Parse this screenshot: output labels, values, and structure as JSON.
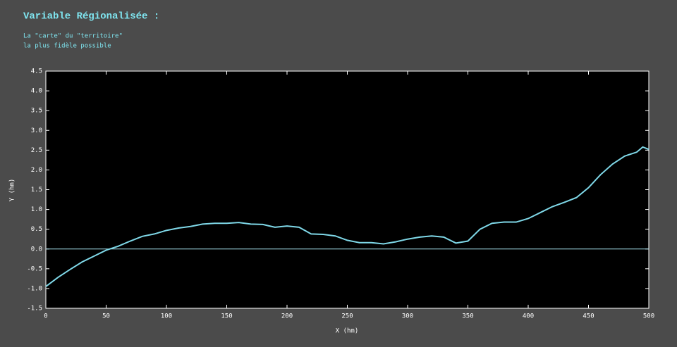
{
  "chart_data": {
    "type": "line",
    "title": "Variable Régionalisée :",
    "subtitle": [
      "La \"carte\" du \"territoire\"",
      "la plus fidèle possible"
    ],
    "x_label": "X  (hm)",
    "y_label": "Y  (hm)",
    "x": [
      0,
      10,
      20,
      30,
      40,
      50,
      60,
      70,
      80,
      90,
      100,
      110,
      120,
      130,
      140,
      150,
      160,
      170,
      180,
      190,
      200,
      210,
      220,
      230,
      240,
      250,
      260,
      270,
      280,
      290,
      300,
      310,
      320,
      330,
      340,
      350,
      360,
      370,
      380,
      390,
      400,
      410,
      420,
      430,
      440,
      450,
      460,
      470,
      480,
      490,
      495,
      500
    ],
    "series": [
      {
        "color": "#7fd8e8",
        "values": [
          -0.95,
          -0.72,
          -0.52,
          -0.33,
          -0.18,
          -0.03,
          0.07,
          0.2,
          0.32,
          0.38,
          0.47,
          0.53,
          0.57,
          0.63,
          0.65,
          0.65,
          0.67,
          0.63,
          0.62,
          0.55,
          0.58,
          0.55,
          0.38,
          0.37,
          0.33,
          0.22,
          0.16,
          0.16,
          0.13,
          0.18,
          0.25,
          0.3,
          0.33,
          0.3,
          0.15,
          0.2,
          0.5,
          0.65,
          0.68,
          0.68,
          0.77,
          0.92,
          1.07,
          1.18,
          1.3,
          1.55,
          1.88,
          2.15,
          2.35,
          2.45,
          2.58,
          2.52
        ]
      }
    ],
    "hline": 0,
    "hline_color": "#a8e4f0",
    "xlim": [
      0,
      500
    ],
    "ylim": [
      -1.5,
      4.5
    ],
    "xticks": [
      0,
      50,
      100,
      150,
      200,
      250,
      300,
      350,
      400,
      450,
      500
    ],
    "yticks": [
      -1.5,
      {
        "value": -1,
        "label": "-1.0"
      },
      -0.5,
      {
        "value": 0,
        "label": "0.0"
      },
      0.5,
      {
        "value": 1,
        "label": "1.0"
      },
      1.5,
      {
        "value": 2,
        "label": "2.0"
      },
      2.5,
      {
        "value": 3,
        "label": "3.0"
      },
      3.5,
      {
        "value": 4,
        "label": "4.0"
      },
      4.5
    ]
  }
}
